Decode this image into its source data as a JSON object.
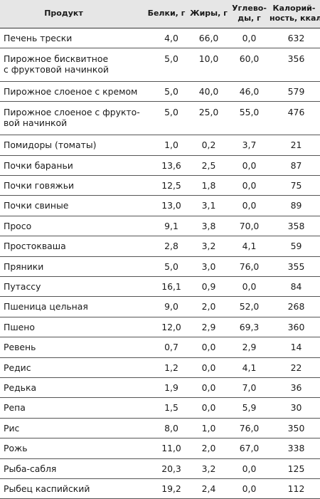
{
  "table": {
    "headers": {
      "product": "Продукт",
      "protein": "Белки, г",
      "fat": "Жиры, г",
      "carbs_line1": "Углево-",
      "carbs_line2": "ды, г",
      "cal_line1": "Калорий-",
      "cal_line2": "ность, ккал"
    },
    "rows": [
      {
        "name": [
          "Печень трески"
        ],
        "protein": "4,0",
        "fat": "66,0",
        "carbs": "0,0",
        "kcal": "632"
      },
      {
        "name": [
          "Пирожное бисквитное",
          "с фруктовой начинкой"
        ],
        "protein": "5,0",
        "fat": "10,0",
        "carbs": "60,0",
        "kcal": "356"
      },
      {
        "name": [
          "Пирожное слоеное с кремом"
        ],
        "protein": "5,0",
        "fat": "40,0",
        "carbs": "46,0",
        "kcal": "579"
      },
      {
        "name": [
          "Пирожное слоеное с фрукто-",
          "вой начинкой"
        ],
        "protein": "5,0",
        "fat": "25,0",
        "carbs": "55,0",
        "kcal": "476"
      },
      {
        "name": [
          "Помидоры (томаты)"
        ],
        "protein": "1,0",
        "fat": "0,2",
        "carbs": "3,7",
        "kcal": "21"
      },
      {
        "name": [
          "Почки бараньи"
        ],
        "protein": "13,6",
        "fat": "2,5",
        "carbs": "0,0",
        "kcal": "87"
      },
      {
        "name": [
          "Почки говяжьи"
        ],
        "protein": "12,5",
        "fat": "1,8",
        "carbs": "0,0",
        "kcal": "75"
      },
      {
        "name": [
          "Почки свиные"
        ],
        "protein": "13,0",
        "fat": "3,1",
        "carbs": "0,0",
        "kcal": "89"
      },
      {
        "name": [
          "Просо"
        ],
        "protein": "9,1",
        "fat": "3,8",
        "carbs": "70,0",
        "kcal": "358"
      },
      {
        "name": [
          "Простокваша"
        ],
        "protein": "2,8",
        "fat": "3,2",
        "carbs": "4,1",
        "kcal": "59"
      },
      {
        "name": [
          "Пряники"
        ],
        "protein": "5,0",
        "fat": "3,0",
        "carbs": "76,0",
        "kcal": "355"
      },
      {
        "name": [
          "Путассу"
        ],
        "protein": "16,1",
        "fat": "0,9",
        "carbs": "0,0",
        "kcal": "84"
      },
      {
        "name": [
          "Пшеница цельная"
        ],
        "protein": "9,0",
        "fat": "2,0",
        "carbs": "52,0",
        "kcal": "268"
      },
      {
        "name": [
          "Пшено"
        ],
        "protein": "12,0",
        "fat": "2,9",
        "carbs": "69,3",
        "kcal": "360"
      },
      {
        "name": [
          "Ревень"
        ],
        "protein": "0,7",
        "fat": "0,0",
        "carbs": "2,9",
        "kcal": "14"
      },
      {
        "name": [
          "Редис"
        ],
        "protein": "1,2",
        "fat": "0,0",
        "carbs": "4,1",
        "kcal": "22"
      },
      {
        "name": [
          "Редька"
        ],
        "protein": "1,9",
        "fat": "0,0",
        "carbs": "7,0",
        "kcal": "36"
      },
      {
        "name": [
          "Репа"
        ],
        "protein": "1,5",
        "fat": "0,0",
        "carbs": "5,9",
        "kcal": "30"
      },
      {
        "name": [
          "Рис"
        ],
        "protein": "8,0",
        "fat": "1,0",
        "carbs": "76,0",
        "kcal": "350"
      },
      {
        "name": [
          "Рожь"
        ],
        "protein": "11,0",
        "fat": "2,0",
        "carbs": "67,0",
        "kcal": "338"
      },
      {
        "name": [
          "Рыба-сабля"
        ],
        "protein": "20,3",
        "fat": "3,2",
        "carbs": "0,0",
        "kcal": "125"
      },
      {
        "name": [
          "Рыбец каспийский"
        ],
        "protein": "19,2",
        "fat": "2,4",
        "carbs": "0,0",
        "kcal": "112"
      }
    ]
  }
}
